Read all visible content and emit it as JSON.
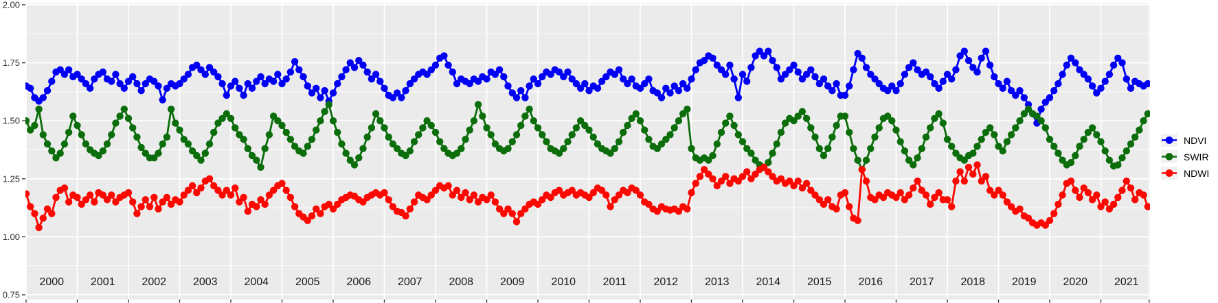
{
  "legend": {
    "entries": [
      {
        "label": "NDVI",
        "color": "#0000f5"
      },
      {
        "label": "SWIR",
        "color": "#0b6e0b"
      },
      {
        "label": "NDWI",
        "color": "#fb0800"
      }
    ],
    "key_bg": "#f2f2f2"
  },
  "chart_data": {
    "type": "line",
    "title": "",
    "xlabel": "",
    "ylabel": "",
    "x_start_year": 2000,
    "x_points_per_year": 12,
    "x_tick_years": [
      "2000",
      "2001",
      "2002",
      "2003",
      "2004",
      "2005",
      "2006",
      "2007",
      "2008",
      "2009",
      "2010",
      "2011",
      "2012",
      "2013",
      "2014",
      "2015",
      "2016",
      "2017",
      "2018",
      "2019",
      "2020",
      "2021"
    ],
    "y_major_ticks": [
      0.75,
      1.0,
      1.25,
      1.5,
      1.75,
      2.0
    ],
    "y_major_tick_labels": [
      "0.75",
      "1.00",
      "1.25",
      "1.50",
      "1.75",
      "2.00"
    ],
    "y_minor_ticks": [
      0.875,
      1.125,
      1.375,
      1.625,
      1.875
    ],
    "ylim": [
      0.73,
      2.006
    ],
    "xlim_years": [
      2000,
      2022
    ],
    "grid": true,
    "legend_position": "right",
    "panel_bg": "#ebebeb",
    "grid_color": "#ffffff",
    "tick_color": "#333333",
    "series": [
      {
        "name": "NDVI",
        "color": "#0000f5",
        "values": [
          1.65,
          1.64,
          1.6,
          1.585,
          1.6,
          1.63,
          1.67,
          1.71,
          1.72,
          1.7,
          1.72,
          1.69,
          1.7,
          1.68,
          1.66,
          1.64,
          1.68,
          1.7,
          1.71,
          1.68,
          1.67,
          1.7,
          1.66,
          1.64,
          1.67,
          1.69,
          1.66,
          1.63,
          1.66,
          1.68,
          1.67,
          1.65,
          1.59,
          1.64,
          1.66,
          1.65,
          1.66,
          1.68,
          1.7,
          1.73,
          1.74,
          1.72,
          1.7,
          1.73,
          1.71,
          1.69,
          1.66,
          1.61,
          1.65,
          1.67,
          1.64,
          1.61,
          1.66,
          1.64,
          1.67,
          1.69,
          1.66,
          1.68,
          1.67,
          1.7,
          1.66,
          1.68,
          1.71,
          1.755,
          1.72,
          1.69,
          1.65,
          1.62,
          1.64,
          1.6,
          1.63,
          1.585,
          1.62,
          1.66,
          1.69,
          1.72,
          1.75,
          1.73,
          1.76,
          1.74,
          1.71,
          1.68,
          1.7,
          1.67,
          1.64,
          1.61,
          1.6,
          1.62,
          1.6,
          1.63,
          1.66,
          1.68,
          1.7,
          1.71,
          1.7,
          1.72,
          1.74,
          1.77,
          1.78,
          1.74,
          1.71,
          1.66,
          1.68,
          1.67,
          1.66,
          1.68,
          1.67,
          1.69,
          1.68,
          1.71,
          1.7,
          1.72,
          1.69,
          1.65,
          1.62,
          1.6,
          1.63,
          1.6,
          1.65,
          1.68,
          1.66,
          1.69,
          1.71,
          1.7,
          1.72,
          1.71,
          1.69,
          1.71,
          1.68,
          1.66,
          1.64,
          1.66,
          1.63,
          1.65,
          1.64,
          1.67,
          1.69,
          1.71,
          1.7,
          1.72,
          1.68,
          1.66,
          1.68,
          1.65,
          1.64,
          1.66,
          1.68,
          1.63,
          1.62,
          1.6,
          1.64,
          1.62,
          1.65,
          1.63,
          1.66,
          1.64,
          1.68,
          1.72,
          1.75,
          1.76,
          1.78,
          1.77,
          1.74,
          1.72,
          1.7,
          1.74,
          1.68,
          1.6,
          1.7,
          1.67,
          1.73,
          1.78,
          1.8,
          1.78,
          1.8,
          1.76,
          1.73,
          1.68,
          1.7,
          1.72,
          1.74,
          1.71,
          1.68,
          1.7,
          1.72,
          1.69,
          1.66,
          1.68,
          1.65,
          1.63,
          1.66,
          1.61,
          1.61,
          1.65,
          1.72,
          1.79,
          1.77,
          1.73,
          1.7,
          1.68,
          1.66,
          1.64,
          1.63,
          1.65,
          1.63,
          1.66,
          1.7,
          1.73,
          1.75,
          1.72,
          1.7,
          1.71,
          1.69,
          1.66,
          1.64,
          1.67,
          1.7,
          1.68,
          1.72,
          1.78,
          1.8,
          1.76,
          1.73,
          1.71,
          1.77,
          1.8,
          1.74,
          1.69,
          1.66,
          1.64,
          1.67,
          1.63,
          1.61,
          1.63,
          1.6,
          1.57,
          1.53,
          1.49,
          1.55,
          1.58,
          1.6,
          1.63,
          1.66,
          1.7,
          1.74,
          1.77,
          1.75,
          1.72,
          1.7,
          1.68,
          1.65,
          1.62,
          1.64,
          1.67,
          1.7,
          1.74,
          1.77,
          1.75,
          1.68,
          1.64,
          1.67,
          1.66,
          1.65,
          1.66
        ]
      },
      {
        "name": "SWIR",
        "color": "#0b6e0b",
        "values": [
          1.5,
          1.46,
          1.48,
          1.55,
          1.44,
          1.4,
          1.37,
          1.34,
          1.36,
          1.4,
          1.45,
          1.52,
          1.48,
          1.44,
          1.4,
          1.375,
          1.36,
          1.35,
          1.37,
          1.4,
          1.44,
          1.49,
          1.52,
          1.55,
          1.51,
          1.47,
          1.43,
          1.385,
          1.36,
          1.34,
          1.34,
          1.36,
          1.4,
          1.43,
          1.55,
          1.49,
          1.46,
          1.42,
          1.4,
          1.37,
          1.35,
          1.33,
          1.36,
          1.4,
          1.45,
          1.49,
          1.51,
          1.53,
          1.51,
          1.47,
          1.44,
          1.42,
          1.38,
          1.35,
          1.33,
          1.3,
          1.38,
          1.44,
          1.52,
          1.5,
          1.48,
          1.45,
          1.42,
          1.39,
          1.37,
          1.36,
          1.39,
          1.42,
          1.46,
          1.5,
          1.54,
          1.57,
          1.5,
          1.45,
          1.4,
          1.36,
          1.33,
          1.31,
          1.34,
          1.38,
          1.43,
          1.47,
          1.53,
          1.5,
          1.47,
          1.43,
          1.4,
          1.38,
          1.36,
          1.35,
          1.37,
          1.41,
          1.44,
          1.47,
          1.5,
          1.48,
          1.45,
          1.41,
          1.38,
          1.36,
          1.35,
          1.36,
          1.38,
          1.42,
          1.46,
          1.5,
          1.57,
          1.52,
          1.47,
          1.44,
          1.4,
          1.38,
          1.37,
          1.38,
          1.41,
          1.44,
          1.48,
          1.52,
          1.55,
          1.5,
          1.47,
          1.44,
          1.41,
          1.38,
          1.37,
          1.36,
          1.38,
          1.41,
          1.44,
          1.47,
          1.5,
          1.48,
          1.46,
          1.43,
          1.4,
          1.38,
          1.37,
          1.36,
          1.38,
          1.41,
          1.45,
          1.48,
          1.51,
          1.53,
          1.5,
          1.46,
          1.42,
          1.39,
          1.38,
          1.4,
          1.42,
          1.44,
          1.47,
          1.5,
          1.53,
          1.55,
          1.38,
          1.34,
          1.33,
          1.34,
          1.33,
          1.35,
          1.4,
          1.45,
          1.49,
          1.52,
          1.48,
          1.44,
          1.41,
          1.38,
          1.36,
          1.33,
          1.31,
          1.3,
          1.32,
          1.36,
          1.4,
          1.45,
          1.49,
          1.51,
          1.5,
          1.52,
          1.54,
          1.51,
          1.47,
          1.43,
          1.38,
          1.35,
          1.38,
          1.43,
          1.48,
          1.52,
          1.52,
          1.45,
          1.38,
          1.33,
          1.29,
          1.33,
          1.38,
          1.43,
          1.47,
          1.51,
          1.52,
          1.5,
          1.46,
          1.41,
          1.37,
          1.33,
          1.31,
          1.34,
          1.38,
          1.43,
          1.47,
          1.51,
          1.53,
          1.49,
          1.42,
          1.39,
          1.36,
          1.34,
          1.33,
          1.35,
          1.36,
          1.39,
          1.42,
          1.45,
          1.47,
          1.44,
          1.39,
          1.37,
          1.41,
          1.44,
          1.47,
          1.5,
          1.53,
          1.55,
          1.53,
          1.52,
          1.5,
          1.47,
          1.42,
          1.39,
          1.36,
          1.33,
          1.31,
          1.32,
          1.35,
          1.39,
          1.42,
          1.45,
          1.47,
          1.44,
          1.41,
          1.37,
          1.33,
          1.305,
          1.31,
          1.34,
          1.37,
          1.4,
          1.43,
          1.46,
          1.5,
          1.53
        ]
      },
      {
        "name": "NDWI",
        "color": "#fb0800",
        "values": [
          1.185,
          1.13,
          1.1,
          1.04,
          1.08,
          1.12,
          1.1,
          1.17,
          1.2,
          1.21,
          1.15,
          1.18,
          1.17,
          1.14,
          1.16,
          1.18,
          1.15,
          1.19,
          1.18,
          1.16,
          1.18,
          1.15,
          1.17,
          1.18,
          1.19,
          1.15,
          1.1,
          1.13,
          1.16,
          1.13,
          1.17,
          1.12,
          1.15,
          1.17,
          1.14,
          1.16,
          1.15,
          1.18,
          1.2,
          1.22,
          1.19,
          1.21,
          1.24,
          1.25,
          1.22,
          1.2,
          1.18,
          1.2,
          1.18,
          1.21,
          1.15,
          1.17,
          1.11,
          1.14,
          1.13,
          1.16,
          1.14,
          1.18,
          1.2,
          1.22,
          1.23,
          1.2,
          1.17,
          1.13,
          1.1,
          1.085,
          1.07,
          1.09,
          1.12,
          1.1,
          1.13,
          1.14,
          1.12,
          1.14,
          1.16,
          1.17,
          1.18,
          1.175,
          1.16,
          1.15,
          1.17,
          1.18,
          1.19,
          1.18,
          1.19,
          1.16,
          1.13,
          1.11,
          1.105,
          1.09,
          1.12,
          1.15,
          1.18,
          1.17,
          1.16,
          1.18,
          1.2,
          1.22,
          1.21,
          1.22,
          1.18,
          1.2,
          1.17,
          1.19,
          1.16,
          1.18,
          1.15,
          1.17,
          1.16,
          1.18,
          1.15,
          1.12,
          1.1,
          1.12,
          1.1,
          1.065,
          1.1,
          1.12,
          1.14,
          1.15,
          1.14,
          1.16,
          1.18,
          1.17,
          1.19,
          1.2,
          1.18,
          1.19,
          1.2,
          1.18,
          1.19,
          1.18,
          1.17,
          1.19,
          1.21,
          1.2,
          1.18,
          1.13,
          1.16,
          1.18,
          1.2,
          1.19,
          1.21,
          1.2,
          1.18,
          1.15,
          1.14,
          1.12,
          1.11,
          1.13,
          1.12,
          1.115,
          1.12,
          1.11,
          1.13,
          1.12,
          1.19,
          1.23,
          1.26,
          1.29,
          1.27,
          1.25,
          1.22,
          1.24,
          1.26,
          1.23,
          1.25,
          1.24,
          1.26,
          1.28,
          1.25,
          1.27,
          1.29,
          1.3,
          1.28,
          1.26,
          1.24,
          1.25,
          1.23,
          1.24,
          1.22,
          1.24,
          1.21,
          1.23,
          1.2,
          1.18,
          1.16,
          1.14,
          1.16,
          1.13,
          1.12,
          1.18,
          1.19,
          1.13,
          1.08,
          1.07,
          1.29,
          1.24,
          1.17,
          1.16,
          1.18,
          1.17,
          1.19,
          1.18,
          1.17,
          1.19,
          1.16,
          1.18,
          1.21,
          1.24,
          1.2,
          1.18,
          1.14,
          1.17,
          1.19,
          1.16,
          1.16,
          1.13,
          1.24,
          1.28,
          1.24,
          1.3,
          1.27,
          1.31,
          1.24,
          1.26,
          1.2,
          1.18,
          1.2,
          1.18,
          1.15,
          1.13,
          1.11,
          1.12,
          1.09,
          1.08,
          1.06,
          1.05,
          1.06,
          1.05,
          1.07,
          1.1,
          1.14,
          1.18,
          1.23,
          1.24,
          1.2,
          1.17,
          1.21,
          1.19,
          1.16,
          1.18,
          1.13,
          1.15,
          1.12,
          1.14,
          1.17,
          1.2,
          1.24,
          1.21,
          1.16,
          1.19,
          1.18,
          1.13
        ]
      }
    ]
  }
}
